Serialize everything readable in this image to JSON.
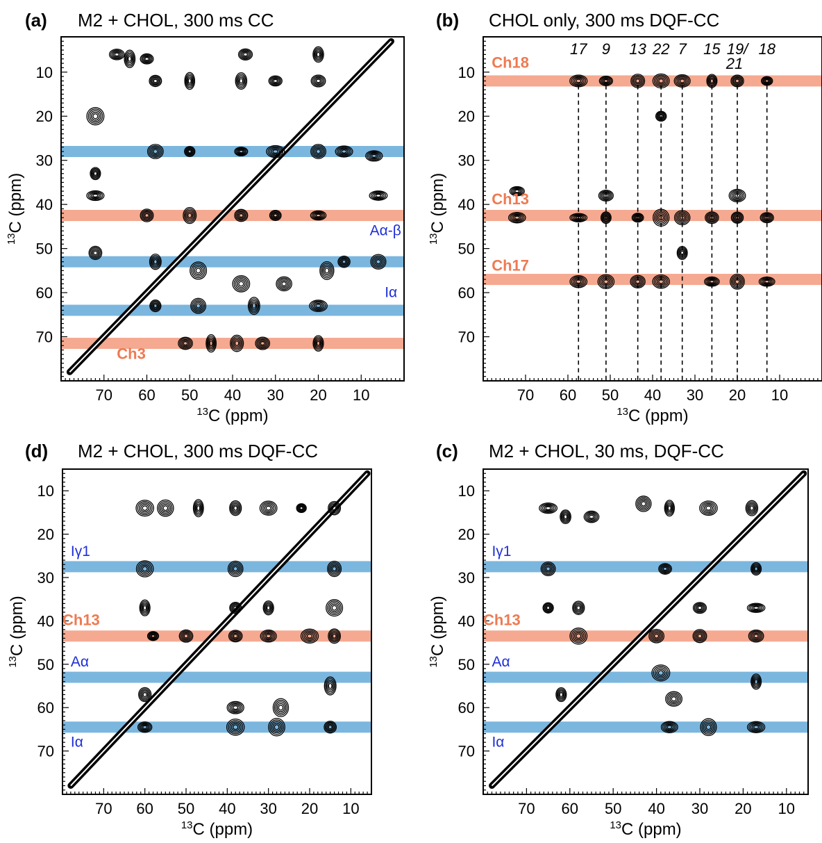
{
  "axis_unit": "(ppm)",
  "axis_nucleus_sup": "13",
  "axis_nucleus": "C",
  "colors": {
    "orange_band": "#f4a48a",
    "blue_band": "#74b2dc",
    "red_label": "#ee7a52",
    "blue_label": "#1f2fd6",
    "contour": "#000000"
  },
  "panels": [
    {
      "id": "a",
      "letter": "(a)",
      "title": "M2 + CHOL, 300 ms CC",
      "x_ticks": [
        70,
        60,
        50,
        40,
        30,
        20,
        10
      ],
      "y_ticks": [
        10,
        20,
        30,
        40,
        50,
        60,
        70
      ],
      "ylim": [
        80,
        2
      ],
      "xlim": [
        80,
        0
      ],
      "bands": [
        {
          "ppm": 28,
          "color": "blue"
        },
        {
          "ppm": 42.5,
          "color": "orange"
        },
        {
          "ppm": 53,
          "color": "blue"
        },
        {
          "ppm": 64,
          "color": "blue"
        },
        {
          "ppm": 71.5,
          "color": "orange"
        }
      ],
      "labels": [
        {
          "text": "Ch3",
          "x": 67,
          "y": 75,
          "color": "red"
        },
        {
          "text": "Aα-β",
          "x": 8,
          "y": 47,
          "color": "blue"
        },
        {
          "text": "Iα",
          "x": 4.5,
          "y": 61,
          "color": "blue"
        }
      ]
    },
    {
      "id": "b",
      "letter": "(b)",
      "title": "CHOL only, 300 ms DQF-CC",
      "x_ticks": [
        70,
        60,
        50,
        40,
        30,
        20,
        10
      ],
      "y_ticks": [
        10,
        20,
        30,
        40,
        50,
        60,
        70
      ],
      "ylim": [
        80,
        2
      ],
      "xlim": [
        80,
        0
      ],
      "bands": [
        {
          "ppm": 12,
          "color": "orange"
        },
        {
          "ppm": 42.5,
          "color": "orange"
        },
        {
          "ppm": 57,
          "color": "orange"
        }
      ],
      "labels": [
        {
          "text": "Ch18",
          "x": 78,
          "y": 9,
          "color": "red"
        },
        {
          "text": "Ch13",
          "x": 78,
          "y": 40,
          "color": "red"
        },
        {
          "text": "Ch17",
          "x": 78,
          "y": 55,
          "color": "red"
        }
      ],
      "columns": [
        {
          "label": "17",
          "ppm": 57.5
        },
        {
          "label": "9",
          "ppm": 51
        },
        {
          "label": "13",
          "ppm": 43.5
        },
        {
          "label": "22",
          "ppm": 38
        },
        {
          "label": "7",
          "ppm": 33
        },
        {
          "label": "15",
          "ppm": 26
        },
        {
          "label": "19/",
          "label2": "21",
          "ppm": 20
        },
        {
          "label": "18",
          "ppm": 13
        }
      ]
    },
    {
      "id": "d",
      "letter": "(d)",
      "title": "M2 + CHOL, 300 ms DQF-CC",
      "x_ticks": [
        70,
        60,
        50,
        40,
        30,
        20,
        10
      ],
      "y_ticks": [
        10,
        20,
        30,
        40,
        50,
        60,
        70
      ],
      "ylim": [
        80,
        5
      ],
      "xlim": [
        80,
        5
      ],
      "bands": [
        {
          "ppm": 27.5,
          "color": "blue"
        },
        {
          "ppm": 43.5,
          "color": "orange"
        },
        {
          "ppm": 53,
          "color": "blue"
        },
        {
          "ppm": 64.5,
          "color": "blue"
        }
      ],
      "labels": [
        {
          "text": "Iγ1",
          "x": 78,
          "y": 25,
          "color": "blue"
        },
        {
          "text": "Ch13",
          "x": 80,
          "y": 41,
          "color": "red"
        },
        {
          "text": "Aα",
          "x": 78,
          "y": 50.5,
          "color": "blue"
        },
        {
          "text": "Iα",
          "x": 78,
          "y": 69,
          "color": "blue"
        }
      ]
    },
    {
      "id": "c",
      "letter": "(c)",
      "title": "M2 + CHOL, 30 ms, DQF-CC",
      "x_ticks": [
        70,
        60,
        50,
        40,
        30,
        20,
        10
      ],
      "y_ticks": [
        10,
        20,
        30,
        40,
        50,
        60,
        70
      ],
      "ylim": [
        80,
        5
      ],
      "xlim": [
        80,
        5
      ],
      "bands": [
        {
          "ppm": 27.5,
          "color": "blue"
        },
        {
          "ppm": 43.5,
          "color": "orange"
        },
        {
          "ppm": 53,
          "color": "blue"
        },
        {
          "ppm": 64.5,
          "color": "blue"
        }
      ],
      "labels": [
        {
          "text": "Iγ1",
          "x": 78,
          "y": 25,
          "color": "blue"
        },
        {
          "text": "Ch13",
          "x": 80,
          "y": 41,
          "color": "red"
        },
        {
          "text": "Aα",
          "x": 78,
          "y": 50.5,
          "color": "blue"
        },
        {
          "text": "Iα",
          "x": 78,
          "y": 69,
          "color": "blue"
        }
      ]
    }
  ],
  "chart_data": [
    {
      "type": "heatmap",
      "panel": "a",
      "title": "M2 + CHOL, 300 ms CC",
      "xlabel": "13C (ppm)",
      "ylabel": "13C (ppm)",
      "xlim": [
        80,
        0
      ],
      "ylim": [
        80,
        2
      ],
      "peaks": [
        {
          "x": 72,
          "y": 20
        },
        {
          "x": 72,
          "y": 33
        },
        {
          "x": 72,
          "y": 38
        },
        {
          "x": 72,
          "y": 51
        },
        {
          "x": 67,
          "y": 6
        },
        {
          "x": 64,
          "y": 7
        },
        {
          "x": 60,
          "y": 7
        },
        {
          "x": 37,
          "y": 6
        },
        {
          "x": 20,
          "y": 6
        },
        {
          "x": 58,
          "y": 12
        },
        {
          "x": 50,
          "y": 12
        },
        {
          "x": 38,
          "y": 12
        },
        {
          "x": 30,
          "y": 12
        },
        {
          "x": 20,
          "y": 12
        },
        {
          "x": 58,
          "y": 28
        },
        {
          "x": 50,
          "y": 28
        },
        {
          "x": 38,
          "y": 28
        },
        {
          "x": 30,
          "y": 28
        },
        {
          "x": 20,
          "y": 28
        },
        {
          "x": 14,
          "y": 28
        },
        {
          "x": 60,
          "y": 42.5
        },
        {
          "x": 50,
          "y": 42.5
        },
        {
          "x": 38,
          "y": 42.5
        },
        {
          "x": 30,
          "y": 42.5
        },
        {
          "x": 20,
          "y": 42.5
        },
        {
          "x": 58,
          "y": 53
        },
        {
          "x": 48,
          "y": 55
        },
        {
          "x": 38,
          "y": 58
        },
        {
          "x": 28,
          "y": 58
        },
        {
          "x": 18,
          "y": 55
        },
        {
          "x": 14,
          "y": 53
        },
        {
          "x": 58,
          "y": 63
        },
        {
          "x": 48,
          "y": 63
        },
        {
          "x": 35,
          "y": 63
        },
        {
          "x": 20,
          "y": 63
        },
        {
          "x": 51,
          "y": 71.5
        },
        {
          "x": 45,
          "y": 71.5
        },
        {
          "x": 39,
          "y": 71.5
        },
        {
          "x": 33,
          "y": 71.5
        },
        {
          "x": 20,
          "y": 71.5
        },
        {
          "x": 7,
          "y": 29
        },
        {
          "x": 6,
          "y": 38
        },
        {
          "x": 6,
          "y": 53
        }
      ]
    },
    {
      "type": "heatmap",
      "panel": "b",
      "title": "CHOL only, 300 ms DQF-CC",
      "xlabel": "13C (ppm)",
      "ylabel": "13C (ppm)",
      "xlim": [
        80,
        0
      ],
      "ylim": [
        80,
        2
      ],
      "peaks": [
        {
          "x": 57.5,
          "y": 12
        },
        {
          "x": 51,
          "y": 12
        },
        {
          "x": 43.5,
          "y": 12
        },
        {
          "x": 38,
          "y": 12
        },
        {
          "x": 33,
          "y": 12
        },
        {
          "x": 26,
          "y": 12
        },
        {
          "x": 20,
          "y": 12
        },
        {
          "x": 13,
          "y": 12
        },
        {
          "x": 72,
          "y": 43
        },
        {
          "x": 57.5,
          "y": 43
        },
        {
          "x": 51,
          "y": 43
        },
        {
          "x": 43.5,
          "y": 43
        },
        {
          "x": 38,
          "y": 43
        },
        {
          "x": 33,
          "y": 43
        },
        {
          "x": 26,
          "y": 43
        },
        {
          "x": 20,
          "y": 43
        },
        {
          "x": 13,
          "y": 43
        },
        {
          "x": 57.5,
          "y": 57.5
        },
        {
          "x": 51,
          "y": 57.5
        },
        {
          "x": 43.5,
          "y": 57.5
        },
        {
          "x": 38,
          "y": 57.5
        },
        {
          "x": 26,
          "y": 57.5
        },
        {
          "x": 20,
          "y": 57.5
        },
        {
          "x": 13,
          "y": 57.5
        },
        {
          "x": 38,
          "y": 20
        },
        {
          "x": 51,
          "y": 38
        },
        {
          "x": 20,
          "y": 38
        },
        {
          "x": 72,
          "y": 37
        },
        {
          "x": 33,
          "y": 51
        }
      ],
      "column_assignments": [
        "17",
        "9",
        "13",
        "22",
        "7",
        "15",
        "19/21",
        "18"
      ]
    },
    {
      "type": "heatmap",
      "panel": "d",
      "title": "M2 + CHOL, 300 ms DQF-CC",
      "xlabel": "13C (ppm)",
      "ylabel": "13C (ppm)",
      "xlim": [
        80,
        5
      ],
      "ylim": [
        80,
        5
      ],
      "peaks": [
        {
          "x": 60,
          "y": 14
        },
        {
          "x": 55,
          "y": 14
        },
        {
          "x": 47,
          "y": 14
        },
        {
          "x": 38,
          "y": 14
        },
        {
          "x": 30,
          "y": 14
        },
        {
          "x": 22,
          "y": 14
        },
        {
          "x": 14,
          "y": 14
        },
        {
          "x": 60,
          "y": 28
        },
        {
          "x": 38,
          "y": 28
        },
        {
          "x": 14,
          "y": 28
        },
        {
          "x": 60,
          "y": 37
        },
        {
          "x": 38,
          "y": 37
        },
        {
          "x": 30,
          "y": 37
        },
        {
          "x": 14,
          "y": 37
        },
        {
          "x": 58,
          "y": 43.5
        },
        {
          "x": 50,
          "y": 43.5
        },
        {
          "x": 38,
          "y": 43.5
        },
        {
          "x": 30,
          "y": 43.5
        },
        {
          "x": 20,
          "y": 43.5
        },
        {
          "x": 14,
          "y": 43.5
        },
        {
          "x": 60,
          "y": 57
        },
        {
          "x": 38,
          "y": 60
        },
        {
          "x": 27,
          "y": 60
        },
        {
          "x": 15,
          "y": 55
        },
        {
          "x": 60,
          "y": 64.5
        },
        {
          "x": 38,
          "y": 64.5
        },
        {
          "x": 28,
          "y": 64.5
        },
        {
          "x": 15,
          "y": 64.5
        }
      ]
    },
    {
      "type": "heatmap",
      "panel": "c",
      "title": "M2 + CHOL, 30 ms, DQF-CC",
      "xlabel": "13C (ppm)",
      "ylabel": "13C (ppm)",
      "xlim": [
        80,
        5
      ],
      "ylim": [
        80,
        5
      ],
      "peaks": [
        {
          "x": 65,
          "y": 14
        },
        {
          "x": 61,
          "y": 16
        },
        {
          "x": 55,
          "y": 16
        },
        {
          "x": 43,
          "y": 13
        },
        {
          "x": 37,
          "y": 14
        },
        {
          "x": 28,
          "y": 14
        },
        {
          "x": 18,
          "y": 14
        },
        {
          "x": 65,
          "y": 28
        },
        {
          "x": 38,
          "y": 28
        },
        {
          "x": 17,
          "y": 28
        },
        {
          "x": 65,
          "y": 37
        },
        {
          "x": 58,
          "y": 37
        },
        {
          "x": 30,
          "y": 37
        },
        {
          "x": 17,
          "y": 37
        },
        {
          "x": 58,
          "y": 43.5
        },
        {
          "x": 40,
          "y": 43.5
        },
        {
          "x": 30,
          "y": 43.5
        },
        {
          "x": 17,
          "y": 43.5
        },
        {
          "x": 62,
          "y": 57
        },
        {
          "x": 39,
          "y": 52
        },
        {
          "x": 36,
          "y": 58
        },
        {
          "x": 17,
          "y": 54
        },
        {
          "x": 37,
          "y": 64.5
        },
        {
          "x": 28,
          "y": 64.5
        },
        {
          "x": 17,
          "y": 64.5
        }
      ]
    }
  ]
}
